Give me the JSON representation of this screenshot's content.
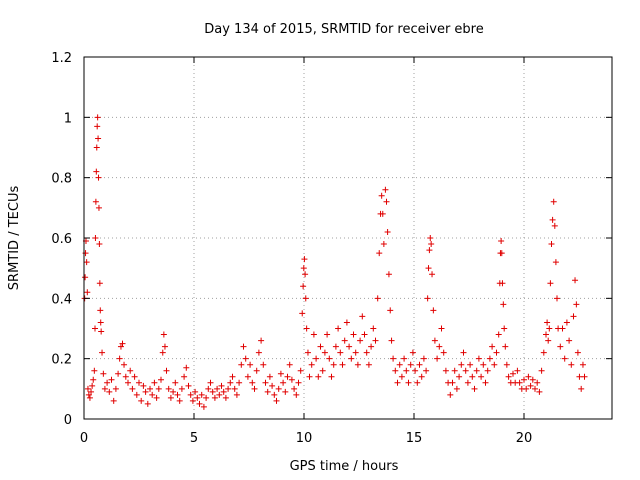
{
  "chart_data": {
    "type": "scatter",
    "title": "Day 134 of 2015, SRMTID for receiver ebre",
    "xlabel": "GPS time / hours",
    "ylabel": "SRMTID / TECUs",
    "xlim": [
      0,
      24
    ],
    "ylim": [
      0,
      1.2
    ],
    "xticks": [
      0,
      5,
      10,
      15,
      20
    ],
    "xtick_labels": [
      "0",
      "5",
      "10",
      "15",
      "20"
    ],
    "yticks": [
      0,
      0.2,
      0.4,
      0.6,
      0.8,
      1,
      1.2
    ],
    "ytick_labels": [
      "0",
      "0.2",
      "0.4",
      "0.6",
      "0.8",
      "1",
      "1.2"
    ],
    "grid": true,
    "marker": "+",
    "color": "#e00000",
    "series": [
      {
        "name": "SRMTID",
        "points": [
          [
            0.03,
            0.4
          ],
          [
            0.05,
            0.47
          ],
          [
            0.07,
            0.55
          ],
          [
            0.09,
            0.59
          ],
          [
            0.12,
            0.52
          ],
          [
            0.15,
            0.42
          ],
          [
            0.18,
            0.1
          ],
          [
            0.22,
            0.08
          ],
          [
            0.27,
            0.07
          ],
          [
            0.32,
            0.09
          ],
          [
            0.37,
            0.11
          ],
          [
            0.42,
            0.13
          ],
          [
            0.47,
            0.16
          ],
          [
            0.5,
            0.3
          ],
          [
            0.52,
            0.6
          ],
          [
            0.54,
            0.72
          ],
          [
            0.56,
            0.82
          ],
          [
            0.58,
            0.9
          ],
          [
            0.6,
            0.97
          ],
          [
            0.62,
            1.0
          ],
          [
            0.64,
            0.93
          ],
          [
            0.66,
            0.8
          ],
          [
            0.68,
            0.7
          ],
          [
            0.7,
            0.58
          ],
          [
            0.72,
            0.45
          ],
          [
            0.74,
            0.36
          ],
          [
            0.76,
            0.32
          ],
          [
            0.78,
            0.29
          ],
          [
            0.82,
            0.22
          ],
          [
            0.88,
            0.15
          ],
          [
            0.95,
            0.1
          ],
          [
            1.05,
            0.12
          ],
          [
            1.15,
            0.09
          ],
          [
            1.25,
            0.13
          ],
          [
            1.35,
            0.06
          ],
          [
            1.45,
            0.1
          ],
          [
            1.55,
            0.15
          ],
          [
            1.62,
            0.2
          ],
          [
            1.68,
            0.24
          ],
          [
            1.75,
            0.25
          ],
          [
            1.82,
            0.18
          ],
          [
            1.9,
            0.14
          ],
          [
            2.0,
            0.12
          ],
          [
            2.1,
            0.16
          ],
          [
            2.2,
            0.1
          ],
          [
            2.3,
            0.14
          ],
          [
            2.4,
            0.08
          ],
          [
            2.5,
            0.12
          ],
          [
            2.6,
            0.06
          ],
          [
            2.7,
            0.11
          ],
          [
            2.8,
            0.09
          ],
          [
            2.9,
            0.05
          ],
          [
            3.0,
            0.1
          ],
          [
            3.1,
            0.08
          ],
          [
            3.2,
            0.12
          ],
          [
            3.3,
            0.07
          ],
          [
            3.4,
            0.1
          ],
          [
            3.5,
            0.13
          ],
          [
            3.58,
            0.22
          ],
          [
            3.63,
            0.28
          ],
          [
            3.68,
            0.24
          ],
          [
            3.75,
            0.16
          ],
          [
            3.85,
            0.1
          ],
          [
            3.95,
            0.07
          ],
          [
            4.05,
            0.09
          ],
          [
            4.15,
            0.12
          ],
          [
            4.25,
            0.08
          ],
          [
            4.35,
            0.06
          ],
          [
            4.45,
            0.1
          ],
          [
            4.55,
            0.14
          ],
          [
            4.65,
            0.17
          ],
          [
            4.75,
            0.11
          ],
          [
            4.85,
            0.08
          ],
          [
            4.95,
            0.06
          ],
          [
            5.05,
            0.09
          ],
          [
            5.15,
            0.07
          ],
          [
            5.25,
            0.05
          ],
          [
            5.35,
            0.08
          ],
          [
            5.45,
            0.04
          ],
          [
            5.55,
            0.07
          ],
          [
            5.65,
            0.1
          ],
          [
            5.75,
            0.12
          ],
          [
            5.85,
            0.09
          ],
          [
            5.95,
            0.07
          ],
          [
            6.05,
            0.1
          ],
          [
            6.15,
            0.08
          ],
          [
            6.25,
            0.11
          ],
          [
            6.35,
            0.09
          ],
          [
            6.45,
            0.07
          ],
          [
            6.55,
            0.1
          ],
          [
            6.65,
            0.12
          ],
          [
            6.75,
            0.14
          ],
          [
            6.85,
            0.1
          ],
          [
            6.95,
            0.08
          ],
          [
            7.05,
            0.12
          ],
          [
            7.15,
            0.18
          ],
          [
            7.25,
            0.24
          ],
          [
            7.35,
            0.2
          ],
          [
            7.45,
            0.14
          ],
          [
            7.55,
            0.18
          ],
          [
            7.65,
            0.12
          ],
          [
            7.75,
            0.1
          ],
          [
            7.85,
            0.16
          ],
          [
            7.95,
            0.22
          ],
          [
            8.05,
            0.26
          ],
          [
            8.15,
            0.18
          ],
          [
            8.25,
            0.12
          ],
          [
            8.35,
            0.09
          ],
          [
            8.45,
            0.14
          ],
          [
            8.55,
            0.11
          ],
          [
            8.65,
            0.08
          ],
          [
            8.75,
            0.06
          ],
          [
            8.85,
            0.1
          ],
          [
            8.95,
            0.15
          ],
          [
            9.05,
            0.12
          ],
          [
            9.15,
            0.09
          ],
          [
            9.25,
            0.14
          ],
          [
            9.35,
            0.18
          ],
          [
            9.45,
            0.13
          ],
          [
            9.55,
            0.1
          ],
          [
            9.65,
            0.08
          ],
          [
            9.75,
            0.12
          ],
          [
            9.85,
            0.16
          ],
          [
            9.92,
            0.35
          ],
          [
            9.96,
            0.44
          ],
          [
            9.99,
            0.5
          ],
          [
            10.02,
            0.53
          ],
          [
            10.05,
            0.48
          ],
          [
            10.08,
            0.4
          ],
          [
            10.12,
            0.3
          ],
          [
            10.18,
            0.22
          ],
          [
            10.25,
            0.14
          ],
          [
            10.35,
            0.18
          ],
          [
            10.45,
            0.28
          ],
          [
            10.55,
            0.2
          ],
          [
            10.65,
            0.14
          ],
          [
            10.75,
            0.24
          ],
          [
            10.85,
            0.16
          ],
          [
            10.95,
            0.22
          ],
          [
            11.05,
            0.28
          ],
          [
            11.15,
            0.2
          ],
          [
            11.25,
            0.14
          ],
          [
            11.35,
            0.18
          ],
          [
            11.45,
            0.24
          ],
          [
            11.55,
            0.3
          ],
          [
            11.65,
            0.22
          ],
          [
            11.75,
            0.18
          ],
          [
            11.85,
            0.26
          ],
          [
            11.95,
            0.32
          ],
          [
            12.05,
            0.24
          ],
          [
            12.15,
            0.2
          ],
          [
            12.25,
            0.28
          ],
          [
            12.35,
            0.22
          ],
          [
            12.45,
            0.18
          ],
          [
            12.55,
            0.26
          ],
          [
            12.65,
            0.34
          ],
          [
            12.75,
            0.28
          ],
          [
            12.85,
            0.22
          ],
          [
            12.95,
            0.18
          ],
          [
            13.05,
            0.24
          ],
          [
            13.15,
            0.3
          ],
          [
            13.25,
            0.26
          ],
          [
            13.35,
            0.4
          ],
          [
            13.42,
            0.55
          ],
          [
            13.48,
            0.68
          ],
          [
            13.53,
            0.74
          ],
          [
            13.58,
            0.68
          ],
          [
            13.63,
            0.58
          ],
          [
            13.7,
            0.76
          ],
          [
            13.75,
            0.72
          ],
          [
            13.8,
            0.62
          ],
          [
            13.86,
            0.48
          ],
          [
            13.92,
            0.36
          ],
          [
            13.98,
            0.26
          ],
          [
            14.05,
            0.2
          ],
          [
            14.15,
            0.16
          ],
          [
            14.25,
            0.12
          ],
          [
            14.35,
            0.18
          ],
          [
            14.45,
            0.14
          ],
          [
            14.55,
            0.2
          ],
          [
            14.65,
            0.16
          ],
          [
            14.75,
            0.12
          ],
          [
            14.85,
            0.18
          ],
          [
            14.95,
            0.22
          ],
          [
            15.05,
            0.16
          ],
          [
            15.15,
            0.12
          ],
          [
            15.25,
            0.18
          ],
          [
            15.35,
            0.14
          ],
          [
            15.45,
            0.2
          ],
          [
            15.55,
            0.16
          ],
          [
            15.62,
            0.4
          ],
          [
            15.66,
            0.5
          ],
          [
            15.7,
            0.56
          ],
          [
            15.74,
            0.6
          ],
          [
            15.78,
            0.58
          ],
          [
            15.82,
            0.48
          ],
          [
            15.88,
            0.36
          ],
          [
            15.95,
            0.26
          ],
          [
            16.05,
            0.2
          ],
          [
            16.15,
            0.24
          ],
          [
            16.25,
            0.3
          ],
          [
            16.35,
            0.22
          ],
          [
            16.45,
            0.16
          ],
          [
            16.55,
            0.12
          ],
          [
            16.65,
            0.08
          ],
          [
            16.75,
            0.12
          ],
          [
            16.85,
            0.16
          ],
          [
            16.95,
            0.1
          ],
          [
            17.05,
            0.14
          ],
          [
            17.15,
            0.18
          ],
          [
            17.25,
            0.22
          ],
          [
            17.35,
            0.16
          ],
          [
            17.45,
            0.12
          ],
          [
            17.55,
            0.18
          ],
          [
            17.65,
            0.14
          ],
          [
            17.75,
            0.1
          ],
          [
            17.85,
            0.16
          ],
          [
            17.95,
            0.2
          ],
          [
            18.05,
            0.14
          ],
          [
            18.15,
            0.18
          ],
          [
            18.25,
            0.12
          ],
          [
            18.35,
            0.16
          ],
          [
            18.45,
            0.2
          ],
          [
            18.55,
            0.24
          ],
          [
            18.65,
            0.18
          ],
          [
            18.75,
            0.22
          ],
          [
            18.85,
            0.28
          ],
          [
            18.9,
            0.45
          ],
          [
            18.93,
            0.55
          ],
          [
            18.96,
            0.59
          ],
          [
            18.99,
            0.55
          ],
          [
            19.02,
            0.45
          ],
          [
            19.06,
            0.38
          ],
          [
            19.1,
            0.3
          ],
          [
            19.15,
            0.24
          ],
          [
            19.22,
            0.18
          ],
          [
            19.3,
            0.14
          ],
          [
            19.4,
            0.12
          ],
          [
            19.5,
            0.15
          ],
          [
            19.6,
            0.12
          ],
          [
            19.7,
            0.16
          ],
          [
            19.8,
            0.12
          ],
          [
            19.9,
            0.1
          ],
          [
            20.0,
            0.13
          ],
          [
            20.1,
            0.1
          ],
          [
            20.2,
            0.14
          ],
          [
            20.3,
            0.11
          ],
          [
            20.4,
            0.13
          ],
          [
            20.5,
            0.1
          ],
          [
            20.6,
            0.12
          ],
          [
            20.7,
            0.09
          ],
          [
            20.8,
            0.16
          ],
          [
            20.9,
            0.22
          ],
          [
            21.0,
            0.28
          ],
          [
            21.05,
            0.32
          ],
          [
            21.1,
            0.26
          ],
          [
            21.15,
            0.3
          ],
          [
            21.2,
            0.45
          ],
          [
            21.25,
            0.58
          ],
          [
            21.3,
            0.66
          ],
          [
            21.35,
            0.72
          ],
          [
            21.4,
            0.64
          ],
          [
            21.45,
            0.52
          ],
          [
            21.5,
            0.4
          ],
          [
            21.55,
            0.3
          ],
          [
            21.65,
            0.24
          ],
          [
            21.75,
            0.3
          ],
          [
            21.85,
            0.2
          ],
          [
            21.95,
            0.32
          ],
          [
            22.05,
            0.26
          ],
          [
            22.15,
            0.18
          ],
          [
            22.25,
            0.34
          ],
          [
            22.32,
            0.46
          ],
          [
            22.38,
            0.38
          ],
          [
            22.45,
            0.22
          ],
          [
            22.52,
            0.14
          ],
          [
            22.6,
            0.1
          ],
          [
            22.68,
            0.18
          ],
          [
            22.75,
            0.14
          ]
        ]
      }
    ]
  }
}
